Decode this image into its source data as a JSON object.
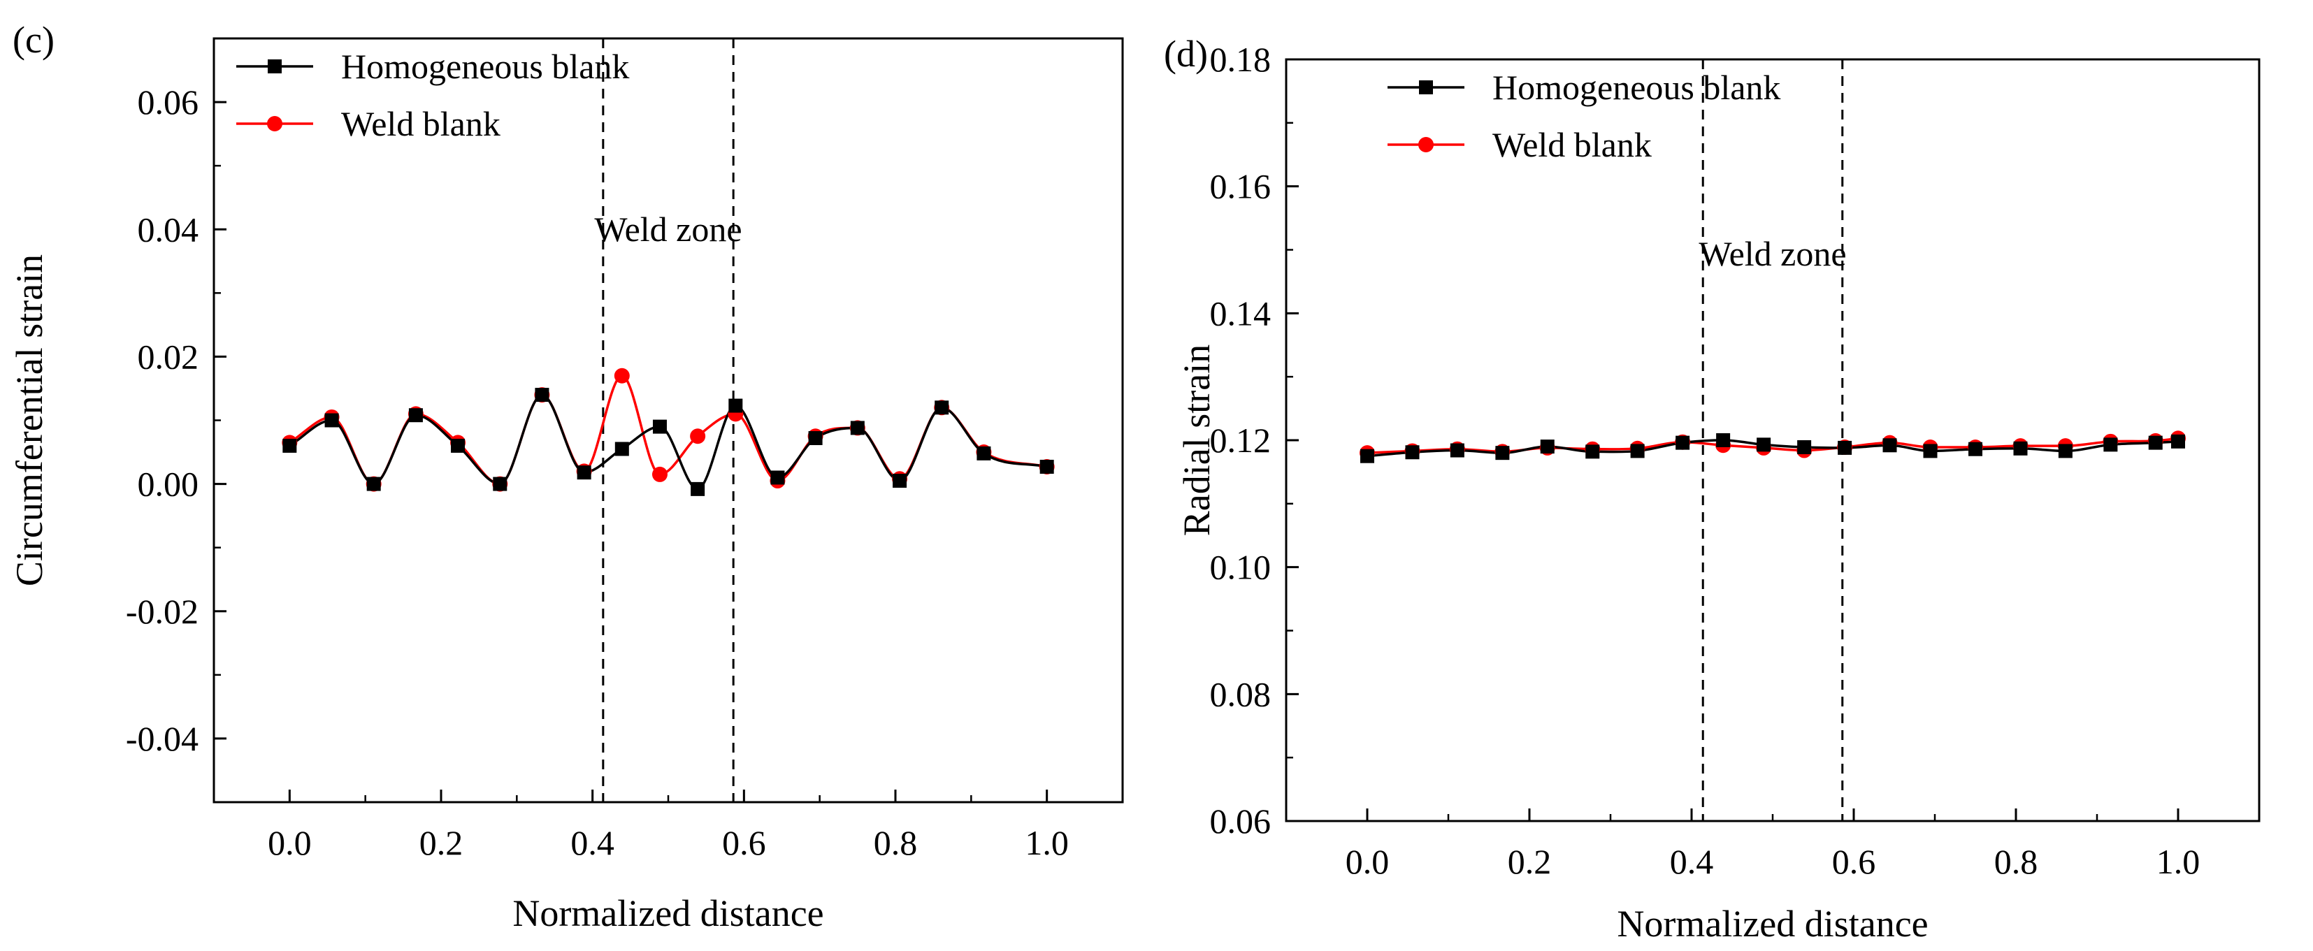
{
  "chart_data": [
    {
      "type": "line",
      "panel_label": "(c)",
      "title": "",
      "xlabel": "Normalized distance",
      "ylabel": "Circumferential strain",
      "xlim": [
        -0.1,
        1.1
      ],
      "ylim": [
        -0.05,
        0.07
      ],
      "x_ticks": [
        0.0,
        0.2,
        0.4,
        0.6,
        0.8,
        1.0
      ],
      "x_tick_labels": [
        "0.0",
        "0.2",
        "0.4",
        "0.6",
        "0.8",
        "1.0"
      ],
      "y_ticks": [
        -0.04,
        -0.02,
        0.0,
        0.02,
        0.04,
        0.06
      ],
      "y_tick_labels": [
        "-0.04",
        "-0.02",
        "0.00",
        "0.02",
        "0.04",
        "0.06"
      ],
      "grid": false,
      "legend_position": "top-left",
      "annotation": "Weld zone",
      "weld_zone_bounds": [
        0.414,
        0.586
      ],
      "series": [
        {
          "name": "Homogeneous blank",
          "color": "#000000",
          "marker": "square",
          "x": [
            0.0,
            0.0556,
            0.1111,
            0.1667,
            0.2222,
            0.2778,
            0.3333,
            0.3889,
            0.4389,
            0.4889,
            0.5389,
            0.5889,
            0.6444,
            0.6944,
            0.75,
            0.8056,
            0.8611,
            0.9167,
            1.0
          ],
          "values": [
            0.006,
            0.01,
            0.0,
            0.0108,
            0.006,
            0.0,
            0.014,
            0.0018,
            0.0055,
            0.009,
            -0.0008,
            0.0123,
            0.001,
            0.0072,
            0.0088,
            0.0005,
            0.012,
            0.0048,
            0.0027
          ]
        },
        {
          "name": "Weld blank",
          "color": "#ff0000",
          "marker": "circle",
          "x": [
            0.0,
            0.0556,
            0.1111,
            0.1667,
            0.2222,
            0.2778,
            0.3333,
            0.3889,
            0.4389,
            0.4889,
            0.5389,
            0.5889,
            0.6444,
            0.6944,
            0.75,
            0.8056,
            0.8611,
            0.9167,
            1.0
          ],
          "values": [
            0.0065,
            0.0105,
            0.0,
            0.011,
            0.0065,
            0.0,
            0.014,
            0.002,
            0.017,
            0.0015,
            0.0075,
            0.011,
            0.0005,
            0.0075,
            0.0088,
            0.0008,
            0.012,
            0.005,
            0.0027
          ]
        }
      ]
    },
    {
      "type": "line",
      "panel_label": "(d)",
      "title": "",
      "xlabel": "Normalized distance",
      "ylabel": "Radial strain",
      "xlim": [
        -0.1,
        1.1
      ],
      "ylim": [
        0.06,
        0.18
      ],
      "x_ticks": [
        0.0,
        0.2,
        0.4,
        0.6,
        0.8,
        1.0
      ],
      "x_tick_labels": [
        "0.0",
        "0.2",
        "0.4",
        "0.6",
        "0.8",
        "1.0"
      ],
      "y_ticks": [
        0.06,
        0.08,
        0.1,
        0.12,
        0.14,
        0.16,
        0.18
      ],
      "y_tick_labels": [
        "0.06",
        "0.08",
        "0.10",
        "0.12",
        "0.14",
        "0.16",
        "0.18"
      ],
      "grid": false,
      "legend_position": "top-left",
      "annotation": "Weld zone",
      "weld_zone_bounds": [
        0.414,
        0.586
      ],
      "series": [
        {
          "name": "Homogeneous blank",
          "color": "#000000",
          "marker": "square",
          "x": [
            0.0,
            0.0556,
            0.1111,
            0.1667,
            0.2222,
            0.2778,
            0.3333,
            0.3889,
            0.4389,
            0.4889,
            0.5389,
            0.5889,
            0.6444,
            0.6944,
            0.75,
            0.8056,
            0.8611,
            0.9167,
            0.9722,
            1.0
          ],
          "values": [
            0.1175,
            0.1181,
            0.1184,
            0.118,
            0.119,
            0.1182,
            0.1183,
            0.1196,
            0.12,
            0.1193,
            0.1189,
            0.1188,
            0.1192,
            0.1183,
            0.1186,
            0.1187,
            0.1183,
            0.1193,
            0.1196,
            0.1198
          ]
        },
        {
          "name": "Weld blank",
          "color": "#ff0000",
          "marker": "circle",
          "x": [
            0.0,
            0.0556,
            0.1111,
            0.1667,
            0.2222,
            0.2778,
            0.3333,
            0.3889,
            0.4389,
            0.4889,
            0.5389,
            0.5889,
            0.6444,
            0.6944,
            0.75,
            0.8056,
            0.8611,
            0.9167,
            0.9722,
            1.0
          ],
          "values": [
            0.118,
            0.1183,
            0.1186,
            0.1182,
            0.1188,
            0.1186,
            0.1187,
            0.1197,
            0.1192,
            0.1188,
            0.1184,
            0.1189,
            0.1196,
            0.1189,
            0.1189,
            0.1191,
            0.1191,
            0.1198,
            0.1199,
            0.1203
          ]
        }
      ]
    }
  ]
}
